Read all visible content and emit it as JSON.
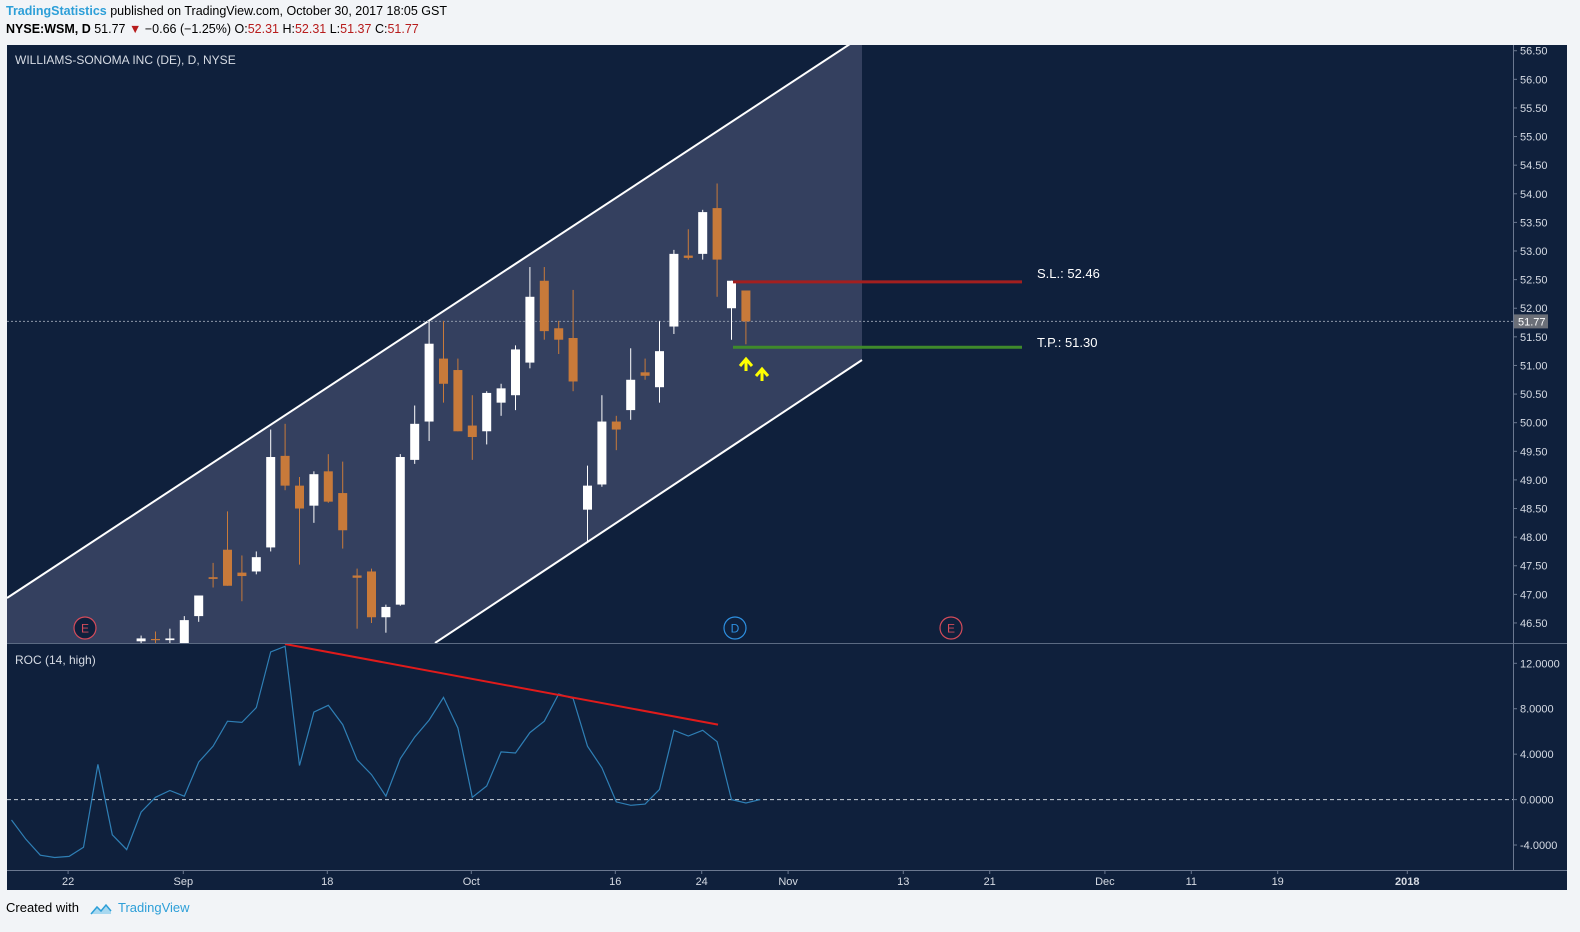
{
  "header": {
    "publisher": "TradingStatistics",
    "published_text": "published on TradingView.com, October 30, 2017 18:05 GST",
    "symbol": "NYSE:WSM, D",
    "last": "51.77",
    "change_arrow": "▼",
    "change": "−0.66 (−1.25%)",
    "o_label": "O:",
    "o_value": "52.31",
    "h_label": "H:",
    "h_value": "52.31",
    "l_label": "L:",
    "l_value": "51.37",
    "c_label": "C:",
    "c_value": "51.77"
  },
  "footer": {
    "created_with": "Created with",
    "brand": "TradingView"
  },
  "colors": {
    "background": "#0f203c",
    "up_candle": "#ffffff",
    "down_candle": "#c87a3a",
    "channel_fill": "#34405f",
    "stop_loss": "#a31f1f",
    "take_profit": "#3f8a2b",
    "roc_line": "#2f7fb5",
    "divergence": "#e01b1b",
    "arrows": "#ffff00",
    "earnings_event": "#d34b5a",
    "dividend_event": "#2d8fe0"
  },
  "chart_data": [
    {
      "type": "candlestick",
      "title": "WILLIAMS-SONOMA INC (DE), D, NYSE",
      "ylim": [
        46.15,
        56.6
      ],
      "y_ticks": [
        "56.50",
        "56.00",
        "55.50",
        "55.00",
        "54.50",
        "54.00",
        "53.50",
        "53.00",
        "52.50",
        "52.00",
        "51.50",
        "51.00",
        "50.50",
        "50.00",
        "49.50",
        "49.00",
        "48.50",
        "48.00",
        "47.50",
        "47.00",
        "46.50"
      ],
      "last_price_label": "51.77",
      "last_price": 51.77,
      "candles": [
        {
          "o": 46.18,
          "h": 46.28,
          "l": 46.12,
          "c": 46.23
        },
        {
          "o": 46.22,
          "h": 46.35,
          "l": 46.12,
          "c": 46.2
        },
        {
          "o": 46.2,
          "h": 46.4,
          "l": 46.12,
          "c": 46.23
        },
        {
          "o": 46.15,
          "h": 46.62,
          "l": 46.12,
          "c": 46.55
        },
        {
          "o": 46.62,
          "h": 46.92,
          "l": 46.52,
          "c": 46.98
        },
        {
          "o": 47.3,
          "h": 47.55,
          "l": 47.12,
          "c": 47.27
        },
        {
          "o": 47.78,
          "h": 48.45,
          "l": 47.15,
          "c": 47.15
        },
        {
          "o": 47.38,
          "h": 47.68,
          "l": 46.88,
          "c": 47.32
        },
        {
          "o": 47.4,
          "h": 47.75,
          "l": 47.35,
          "c": 47.65
        },
        {
          "o": 47.82,
          "h": 49.88,
          "l": 47.75,
          "c": 49.4
        },
        {
          "o": 49.42,
          "h": 49.98,
          "l": 48.82,
          "c": 48.9
        },
        {
          "o": 48.9,
          "h": 49.05,
          "l": 47.52,
          "c": 48.5
        },
        {
          "o": 48.55,
          "h": 49.15,
          "l": 48.25,
          "c": 49.1
        },
        {
          "o": 49.15,
          "h": 49.45,
          "l": 48.6,
          "c": 48.62
        },
        {
          "o": 48.77,
          "h": 49.32,
          "l": 47.8,
          "c": 48.12
        },
        {
          "o": 47.33,
          "h": 47.45,
          "l": 46.4,
          "c": 47.29
        },
        {
          "o": 47.4,
          "h": 47.45,
          "l": 46.5,
          "c": 46.6
        },
        {
          "o": 46.6,
          "h": 46.82,
          "l": 46.33,
          "c": 46.78
        },
        {
          "o": 46.82,
          "h": 49.45,
          "l": 46.8,
          "c": 49.4
        },
        {
          "o": 49.35,
          "h": 50.3,
          "l": 49.28,
          "c": 49.98
        },
        {
          "o": 50.02,
          "h": 51.78,
          "l": 49.68,
          "c": 51.38
        },
        {
          "o": 51.12,
          "h": 51.78,
          "l": 50.35,
          "c": 50.68
        },
        {
          "o": 50.92,
          "h": 51.12,
          "l": 49.85,
          "c": 49.85
        },
        {
          "o": 49.95,
          "h": 50.48,
          "l": 49.35,
          "c": 49.75
        },
        {
          "o": 49.85,
          "h": 50.55,
          "l": 49.62,
          "c": 50.52
        },
        {
          "o": 50.35,
          "h": 50.68,
          "l": 50.12,
          "c": 50.6
        },
        {
          "o": 50.48,
          "h": 51.35,
          "l": 50.22,
          "c": 51.28
        },
        {
          "o": 51.05,
          "h": 52.72,
          "l": 50.95,
          "c": 52.2
        },
        {
          "o": 52.48,
          "h": 52.72,
          "l": 51.45,
          "c": 51.6
        },
        {
          "o": 51.65,
          "h": 51.78,
          "l": 51.2,
          "c": 51.45
        },
        {
          "o": 51.48,
          "h": 52.32,
          "l": 50.55,
          "c": 50.72
        },
        {
          "o": 48.48,
          "h": 49.25,
          "l": 47.9,
          "c": 48.9
        },
        {
          "o": 48.92,
          "h": 50.48,
          "l": 48.88,
          "c": 50.02
        },
        {
          "o": 50.02,
          "h": 50.12,
          "l": 49.52,
          "c": 49.88
        },
        {
          "o": 50.22,
          "h": 51.3,
          "l": 50.05,
          "c": 50.75
        },
        {
          "o": 50.88,
          "h": 51.12,
          "l": 50.75,
          "c": 50.82
        },
        {
          "o": 50.62,
          "h": 51.78,
          "l": 50.35,
          "c": 51.25
        },
        {
          "o": 51.68,
          "h": 53.02,
          "l": 51.55,
          "c": 52.95
        },
        {
          "o": 52.92,
          "h": 53.38,
          "l": 52.85,
          "c": 52.88
        },
        {
          "o": 52.95,
          "h": 53.72,
          "l": 52.85,
          "c": 53.68
        },
        {
          "o": 53.75,
          "h": 54.18,
          "l": 52.2,
          "c": 52.85
        },
        {
          "o": 52.0,
          "h": 52.48,
          "l": 51.45,
          "c": 52.48
        },
        {
          "o": 52.31,
          "h": 52.31,
          "l": 51.37,
          "c": 51.77
        }
      ],
      "annotations": {
        "stop_loss": {
          "label": "S.L.: 52.46",
          "value": 52.46
        },
        "take_profit": {
          "label": "T.P.: 51.30",
          "value": 51.3
        }
      },
      "events": [
        "E",
        "D",
        "E"
      ]
    },
    {
      "type": "line",
      "title": "ROC (14, high)",
      "ylim": [
        -6.2,
        13.7
      ],
      "y_ticks": [
        "12.0000",
        "8.0000",
        "4.0000",
        "0.0000",
        "-4.0000"
      ],
      "series": [
        {
          "values": [
            -1.8,
            -3.5,
            -4.9,
            -5.1,
            -5.0,
            -4.2,
            3.1,
            -3.1,
            -4.4,
            -1.1,
            0.2,
            0.8,
            0.3,
            3.3,
            4.7,
            6.9,
            6.8,
            8.1,
            13.0,
            13.5,
            3.0,
            7.7,
            8.3,
            6.6,
            3.5,
            2.2,
            0.3,
            3.6,
            5.5,
            7.0,
            9.0,
            6.3,
            0.2,
            1.2,
            4.2,
            4.1,
            5.9,
            6.9,
            9.3,
            8.9,
            4.7,
            2.8,
            -0.2,
            -0.5,
            -0.4,
            0.9,
            6.1,
            5.6,
            6.1,
            5.1,
            0.0,
            -0.3,
            0.0
          ]
        }
      ],
      "x_ticks": [
        "22",
        "Sep",
        "18",
        "Oct",
        "16",
        "24",
        "Nov",
        "13",
        "21",
        "Dec",
        "11",
        "19",
        "2018"
      ]
    }
  ]
}
